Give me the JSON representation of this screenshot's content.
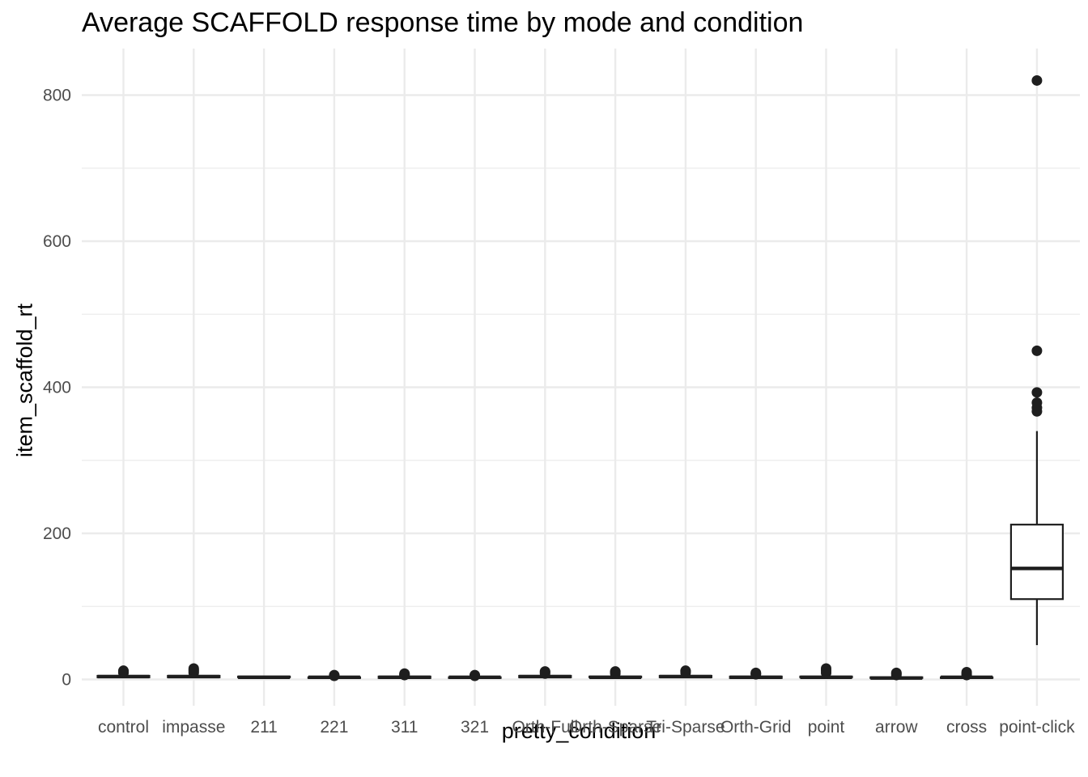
{
  "chart_data": {
    "type": "box",
    "title": "Average SCAFFOLD response time by mode and condition",
    "xlabel": "pretty_condition",
    "ylabel": "item_scaffold_rt",
    "ylim": [
      -35,
      860
    ],
    "y_ticks": [
      0,
      200,
      400,
      600,
      800
    ],
    "grid": true,
    "categories": [
      "control",
      "impasse",
      "211",
      "221",
      "311",
      "321",
      "Orth-Full",
      "Orth-Sparse",
      "Tri-Sparse",
      "Orth-Grid",
      "point",
      "arrow",
      "cross",
      "point-click"
    ],
    "boxes": [
      {
        "category": "control",
        "min": 2,
        "q1": 3,
        "median": 4,
        "q3": 5,
        "max": 8,
        "outliers": [
          9,
          10,
          11,
          12
        ]
      },
      {
        "category": "impasse",
        "min": 2,
        "q1": 3,
        "median": 4,
        "q3": 5,
        "max": 8,
        "outliers": [
          9,
          11,
          13,
          15
        ]
      },
      {
        "category": "211",
        "min": 2,
        "q1": 3,
        "median": 3,
        "q3": 4,
        "max": 5,
        "outliers": []
      },
      {
        "category": "221",
        "min": 1,
        "q1": 2,
        "median": 3,
        "q3": 3,
        "max": 4,
        "outliers": [
          5,
          6
        ]
      },
      {
        "category": "311",
        "min": 2,
        "q1": 2,
        "median": 3,
        "q3": 4,
        "max": 5,
        "outliers": [
          6,
          7,
          8
        ]
      },
      {
        "category": "321",
        "min": 1,
        "q1": 2,
        "median": 3,
        "q3": 3,
        "max": 4,
        "outliers": [
          5,
          6
        ]
      },
      {
        "category": "Orth-Full",
        "min": 2,
        "q1": 3,
        "median": 4,
        "q3": 5,
        "max": 7,
        "outliers": [
          8,
          10,
          11
        ]
      },
      {
        "category": "Orth-Sparse",
        "min": 2,
        "q1": 3,
        "median": 3,
        "q3": 4,
        "max": 6,
        "outliers": [
          8,
          10,
          11
        ]
      },
      {
        "category": "Tri-Sparse",
        "min": 2,
        "q1": 3,
        "median": 4,
        "q3": 5,
        "max": 7,
        "outliers": [
          9,
          11,
          12
        ]
      },
      {
        "category": "Orth-Grid",
        "min": 1,
        "q1": 2,
        "median": 3,
        "q3": 4,
        "max": 5,
        "outliers": [
          7,
          8,
          9
        ]
      },
      {
        "category": "point",
        "min": 2,
        "q1": 3,
        "median": 3,
        "q3": 4,
        "max": 6,
        "outliers": [
          9,
          12,
          15
        ]
      },
      {
        "category": "arrow",
        "min": 1,
        "q1": 2,
        "median": 2,
        "q3": 3,
        "max": 5,
        "outliers": [
          6,
          8,
          9
        ]
      },
      {
        "category": "cross",
        "min": 1,
        "q1": 2,
        "median": 3,
        "q3": 3,
        "max": 5,
        "outliers": [
          6,
          8,
          10
        ]
      },
      {
        "category": "point-click",
        "min": 47,
        "q1": 110,
        "median": 152,
        "q3": 212,
        "max": 340,
        "outliers": [
          367,
          372,
          379,
          393,
          450,
          820
        ]
      }
    ]
  }
}
